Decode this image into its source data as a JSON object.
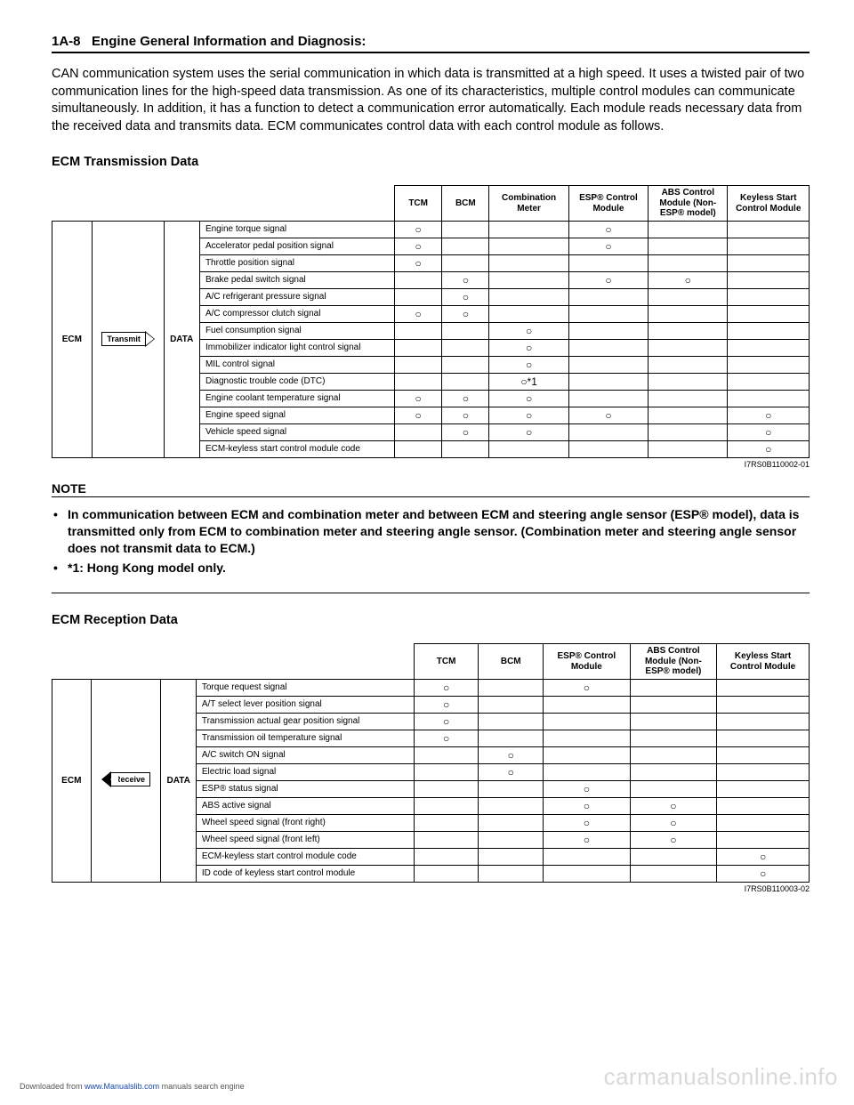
{
  "header": {
    "page_ref": "1A-8",
    "title": "Engine General Information and Diagnosis:"
  },
  "intro": "CAN communication system uses the serial communication in which data is transmitted at a high speed. It uses a twisted pair of two communication lines for the high-speed data transmission. As one of its characteristics, multiple control modules can communicate simultaneously. In addition, it has a function to detect a communication error automatically. Each module reads necessary data from the received data and transmits data. ECM communicates control data with each control module as follows.",
  "tx": {
    "heading": "ECM Transmission Data",
    "ecm_label": "ECM",
    "arrow_label": "Transmit",
    "data_label": "DATA",
    "columns": [
      "TCM",
      "BCM",
      "Combination Meter",
      "ESP® Control Module",
      "ABS Control Module (Non-ESP® model)",
      "Keyless Start Control Module"
    ],
    "rows": [
      {
        "sig": "Engine torque signal",
        "m": [
          "○",
          "",
          "",
          "○",
          "",
          ""
        ]
      },
      {
        "sig": "Accelerator pedal position signal",
        "m": [
          "○",
          "",
          "",
          "○",
          "",
          ""
        ]
      },
      {
        "sig": "Throttle position signal",
        "m": [
          "○",
          "",
          "",
          "",
          "",
          ""
        ]
      },
      {
        "sig": "Brake pedal switch signal",
        "m": [
          "",
          "○",
          "",
          "○",
          "○",
          ""
        ]
      },
      {
        "sig": "A/C refrigerant pressure signal",
        "m": [
          "",
          "○",
          "",
          "",
          "",
          ""
        ]
      },
      {
        "sig": "A/C compressor clutch signal",
        "m": [
          "○",
          "○",
          "",
          "",
          "",
          ""
        ]
      },
      {
        "sig": "Fuel consumption signal",
        "m": [
          "",
          "",
          "○",
          "",
          "",
          ""
        ]
      },
      {
        "sig": "Immobilizer indicator light control signal",
        "m": [
          "",
          "",
          "○",
          "",
          "",
          ""
        ]
      },
      {
        "sig": "MIL control signal",
        "m": [
          "",
          "",
          "○",
          "",
          "",
          ""
        ]
      },
      {
        "sig": "Diagnostic trouble code (DTC)",
        "m": [
          "",
          "",
          "○*1",
          "",
          "",
          ""
        ]
      },
      {
        "sig": "Engine coolant temperature signal",
        "m": [
          "○",
          "○",
          "○",
          "",
          "",
          ""
        ]
      },
      {
        "sig": "Engine speed signal",
        "m": [
          "○",
          "○",
          "○",
          "○",
          "",
          "○"
        ]
      },
      {
        "sig": "Vehicle speed signal",
        "m": [
          "",
          "○",
          "○",
          "",
          "",
          "○"
        ]
      },
      {
        "sig": "ECM-keyless start control module code",
        "m": [
          "",
          "",
          "",
          "",
          "",
          "○"
        ]
      }
    ],
    "fig_id": "I7RS0B110002-01"
  },
  "note": {
    "heading": "NOTE",
    "items": [
      "In communication between ECM and combination meter and between ECM and steering angle sensor (ESP® model), data is transmitted only from ECM to combination meter and steering angle sensor. (Combination meter and steering angle sensor does not transmit data to ECM.)",
      "*1: Hong Kong model only."
    ]
  },
  "rx": {
    "heading": "ECM Reception Data",
    "ecm_label": "ECM",
    "arrow_label": "Receive",
    "data_label": "DATA",
    "columns": [
      "TCM",
      "BCM",
      "ESP® Control Module",
      "ABS Control Module (Non-ESP® model)",
      "Keyless Start Control Module"
    ],
    "rows": [
      {
        "sig": "Torque request signal",
        "m": [
          "○",
          "",
          "○",
          "",
          ""
        ]
      },
      {
        "sig": "A/T select lever position signal",
        "m": [
          "○",
          "",
          "",
          "",
          ""
        ]
      },
      {
        "sig": "Transmission actual gear position signal",
        "m": [
          "○",
          "",
          "",
          "",
          ""
        ]
      },
      {
        "sig": "Transmission oil temperature signal",
        "m": [
          "○",
          "",
          "",
          "",
          ""
        ]
      },
      {
        "sig": "A/C switch ON signal",
        "m": [
          "",
          "○",
          "",
          "",
          ""
        ]
      },
      {
        "sig": "Electric load signal",
        "m": [
          "",
          "○",
          "",
          "",
          ""
        ]
      },
      {
        "sig": "ESP® status signal",
        "m": [
          "",
          "",
          "○",
          "",
          ""
        ]
      },
      {
        "sig": "ABS active signal",
        "m": [
          "",
          "",
          "○",
          "○",
          ""
        ]
      },
      {
        "sig": "Wheel speed signal (front right)",
        "m": [
          "",
          "",
          "○",
          "○",
          ""
        ]
      },
      {
        "sig": "Wheel speed signal (front left)",
        "m": [
          "",
          "",
          "○",
          "○",
          ""
        ]
      },
      {
        "sig": "ECM-keyless start control module code",
        "m": [
          "",
          "",
          "",
          "",
          "○"
        ]
      },
      {
        "sig": "ID code of keyless start control module",
        "m": [
          "",
          "",
          "",
          "",
          "○"
        ]
      }
    ],
    "fig_id": "I7RS0B110003-02"
  },
  "footer": {
    "downloaded_prefix": "Downloaded from ",
    "link_text": "www.Manualslib.com",
    "downloaded_suffix": " manuals search engine",
    "watermark": "carmanualsonline.info"
  }
}
